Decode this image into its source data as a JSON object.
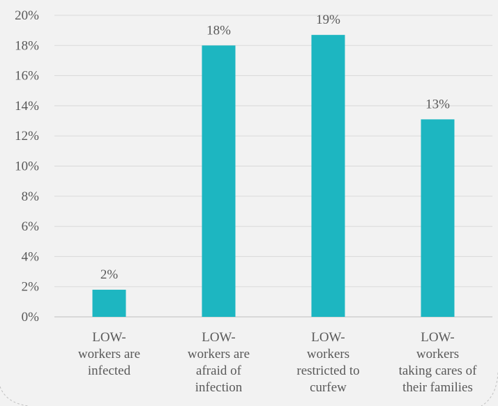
{
  "chart_data": {
    "type": "bar",
    "categories": [
      [
        "LOW-",
        "workers are",
        "infected"
      ],
      [
        "LOW-",
        "workers are",
        "afraid of",
        "infection"
      ],
      [
        "LOW-",
        "workers",
        "restricted to",
        "curfew"
      ],
      [
        "LOW-",
        "workers",
        "taking cares of",
        "their families"
      ]
    ],
    "values": [
      1.8,
      18,
      18.7,
      13.1
    ],
    "data_labels": [
      "2%",
      "18%",
      "19%",
      "13%"
    ],
    "ylim": [
      0,
      20
    ],
    "y_ticks": [
      "0%",
      "2%",
      "4%",
      "6%",
      "8%",
      "10%",
      "12%",
      "14%",
      "16%",
      "18%",
      "20%"
    ],
    "grid": true,
    "legend": "none",
    "colors": {
      "bar": "#1db6c1",
      "background": "#f2f2f2"
    }
  }
}
